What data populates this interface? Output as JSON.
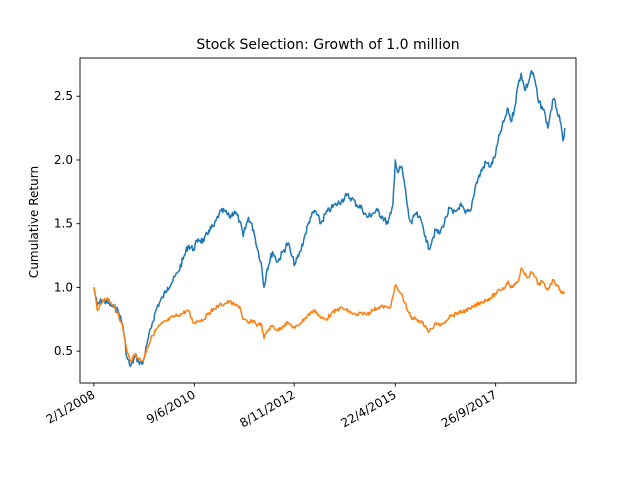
{
  "chart_data": {
    "type": "line",
    "title": "Stock Selection: Growth of 1.0 million",
    "ylabel": "Cumulative Return",
    "xlabel": "",
    "xlim": [
      "2007-09-01",
      "2019-09-07"
    ],
    "ylim": [
      0.25,
      2.8
    ],
    "x_ticks": [
      "2/1/2008",
      "9/6/2010",
      "8/11/2012",
      "22/4/2015",
      "26/9/2017"
    ],
    "x_tick_dates": [
      "2008-01-02",
      "2010-06-09",
      "2012-11-08",
      "2015-04-22",
      "2017-09-26"
    ],
    "y_ticks": [
      0.5,
      1.0,
      1.5,
      2.0,
      2.5
    ],
    "y_tick_labels": [
      "0.5",
      "1.0",
      "1.5",
      "2.0",
      "2.5"
    ],
    "grid": false,
    "series": [
      {
        "color": "#1f77b4",
        "points": [
          [
            "2008-01-02",
            1.0
          ],
          [
            "2008-02-01",
            0.86
          ],
          [
            "2008-03-15",
            0.9
          ],
          [
            "2008-05-01",
            0.88
          ],
          [
            "2008-06-15",
            0.85
          ],
          [
            "2008-08-01",
            0.82
          ],
          [
            "2008-09-15",
            0.7
          ],
          [
            "2008-10-20",
            0.45
          ],
          [
            "2008-11-20",
            0.38
          ],
          [
            "2009-01-05",
            0.46
          ],
          [
            "2009-02-01",
            0.42
          ],
          [
            "2009-03-09",
            0.4
          ],
          [
            "2009-04-15",
            0.55
          ],
          [
            "2009-06-01",
            0.72
          ],
          [
            "2009-07-15",
            0.85
          ],
          [
            "2009-09-01",
            0.92
          ],
          [
            "2009-10-15",
            1.0
          ],
          [
            "2009-12-01",
            1.05
          ],
          [
            "2010-01-15",
            1.12
          ],
          [
            "2010-03-01",
            1.22
          ],
          [
            "2010-04-15",
            1.33
          ],
          [
            "2010-06-01",
            1.3
          ],
          [
            "2010-07-15",
            1.38
          ],
          [
            "2010-09-01",
            1.36
          ],
          [
            "2010-10-15",
            1.45
          ],
          [
            "2010-12-01",
            1.48
          ],
          [
            "2011-01-15",
            1.58
          ],
          [
            "2011-03-01",
            1.6
          ],
          [
            "2011-04-15",
            1.55
          ],
          [
            "2011-06-01",
            1.6
          ],
          [
            "2011-07-15",
            1.52
          ],
          [
            "2011-08-15",
            1.4
          ],
          [
            "2011-10-01",
            1.55
          ],
          [
            "2011-11-15",
            1.45
          ],
          [
            "2011-12-20",
            1.3
          ],
          [
            "2012-01-20",
            1.2
          ],
          [
            "2012-02-15",
            1.0
          ],
          [
            "2012-03-15",
            1.15
          ],
          [
            "2012-05-01",
            1.28
          ],
          [
            "2012-06-15",
            1.2
          ],
          [
            "2012-08-01",
            1.28
          ],
          [
            "2012-09-15",
            1.35
          ],
          [
            "2012-10-15",
            1.25
          ],
          [
            "2012-11-15",
            1.18
          ],
          [
            "2013-01-01",
            1.28
          ],
          [
            "2013-02-15",
            1.42
          ],
          [
            "2013-04-01",
            1.55
          ],
          [
            "2013-05-15",
            1.6
          ],
          [
            "2013-07-01",
            1.5
          ],
          [
            "2013-08-15",
            1.58
          ],
          [
            "2013-10-01",
            1.62
          ],
          [
            "2013-11-15",
            1.65
          ],
          [
            "2014-01-01",
            1.68
          ],
          [
            "2014-02-15",
            1.72
          ],
          [
            "2014-04-01",
            1.7
          ],
          [
            "2014-05-15",
            1.65
          ],
          [
            "2014-07-01",
            1.62
          ],
          [
            "2014-08-15",
            1.55
          ],
          [
            "2014-10-01",
            1.58
          ],
          [
            "2014-11-15",
            1.6
          ],
          [
            "2015-01-01",
            1.55
          ],
          [
            "2015-02-15",
            1.5
          ],
          [
            "2015-03-15",
            1.58
          ],
          [
            "2015-04-01",
            1.65
          ],
          [
            "2015-04-22",
            2.0
          ],
          [
            "2015-05-15",
            1.9
          ],
          [
            "2015-06-15",
            1.95
          ],
          [
            "2015-07-15",
            1.8
          ],
          [
            "2015-08-20",
            1.55
          ],
          [
            "2015-09-15",
            1.5
          ],
          [
            "2015-10-15",
            1.58
          ],
          [
            "2015-11-15",
            1.55
          ],
          [
            "2015-12-15",
            1.5
          ],
          [
            "2016-01-15",
            1.4
          ],
          [
            "2016-02-10",
            1.3
          ],
          [
            "2016-03-15",
            1.38
          ],
          [
            "2016-04-15",
            1.45
          ],
          [
            "2016-05-15",
            1.42
          ],
          [
            "2016-06-15",
            1.48
          ],
          [
            "2016-07-15",
            1.55
          ],
          [
            "2016-08-15",
            1.62
          ],
          [
            "2016-09-15",
            1.58
          ],
          [
            "2016-10-15",
            1.6
          ],
          [
            "2016-11-15",
            1.65
          ],
          [
            "2017-01-01",
            1.58
          ],
          [
            "2017-02-15",
            1.6
          ],
          [
            "2017-04-01",
            1.8
          ],
          [
            "2017-05-15",
            1.9
          ],
          [
            "2017-07-01",
            1.98
          ],
          [
            "2017-08-15",
            1.95
          ],
          [
            "2017-09-26",
            2.05
          ],
          [
            "2017-11-01",
            2.2
          ],
          [
            "2017-12-15",
            2.32
          ],
          [
            "2018-01-15",
            2.4
          ],
          [
            "2018-02-10",
            2.3
          ],
          [
            "2018-03-15",
            2.42
          ],
          [
            "2018-04-15",
            2.6
          ],
          [
            "2018-05-10",
            2.68
          ],
          [
            "2018-06-10",
            2.55
          ],
          [
            "2018-07-10",
            2.6
          ],
          [
            "2018-08-10",
            2.7
          ],
          [
            "2018-09-10",
            2.62
          ],
          [
            "2018-10-10",
            2.45
          ],
          [
            "2018-11-10",
            2.42
          ],
          [
            "2018-12-10",
            2.35
          ],
          [
            "2018-12-31",
            2.25
          ],
          [
            "2019-01-20",
            2.35
          ],
          [
            "2019-02-20",
            2.48
          ],
          [
            "2019-03-20",
            2.4
          ],
          [
            "2019-04-20",
            2.3
          ],
          [
            "2019-05-15",
            2.15
          ],
          [
            "2019-05-31",
            2.25
          ]
        ]
      },
      {
        "color": "#ff7f0e",
        "points": [
          [
            "2008-01-02",
            1.0
          ],
          [
            "2008-02-01",
            0.82
          ],
          [
            "2008-03-15",
            0.88
          ],
          [
            "2008-05-01",
            0.92
          ],
          [
            "2008-06-15",
            0.86
          ],
          [
            "2008-08-01",
            0.8
          ],
          [
            "2008-09-15",
            0.68
          ],
          [
            "2008-10-20",
            0.5
          ],
          [
            "2008-11-20",
            0.42
          ],
          [
            "2009-01-05",
            0.48
          ],
          [
            "2009-02-01",
            0.44
          ],
          [
            "2009-03-09",
            0.42
          ],
          [
            "2009-04-15",
            0.52
          ],
          [
            "2009-06-01",
            0.62
          ],
          [
            "2009-07-15",
            0.68
          ],
          [
            "2009-09-01",
            0.72
          ],
          [
            "2009-10-15",
            0.74
          ],
          [
            "2009-12-01",
            0.77
          ],
          [
            "2010-01-15",
            0.78
          ],
          [
            "2010-03-01",
            0.8
          ],
          [
            "2010-04-15",
            0.82
          ],
          [
            "2010-06-01",
            0.72
          ],
          [
            "2010-07-15",
            0.74
          ],
          [
            "2010-09-01",
            0.75
          ],
          [
            "2010-10-15",
            0.8
          ],
          [
            "2010-12-01",
            0.83
          ],
          [
            "2011-01-15",
            0.86
          ],
          [
            "2011-03-01",
            0.87
          ],
          [
            "2011-04-15",
            0.89
          ],
          [
            "2011-06-01",
            0.86
          ],
          [
            "2011-07-15",
            0.85
          ],
          [
            "2011-08-15",
            0.75
          ],
          [
            "2011-10-01",
            0.72
          ],
          [
            "2011-11-15",
            0.74
          ],
          [
            "2011-12-20",
            0.7
          ],
          [
            "2012-01-20",
            0.72
          ],
          [
            "2012-02-15",
            0.6
          ],
          [
            "2012-03-15",
            0.66
          ],
          [
            "2012-05-01",
            0.7
          ],
          [
            "2012-06-15",
            0.66
          ],
          [
            "2012-08-01",
            0.7
          ],
          [
            "2012-09-15",
            0.72
          ],
          [
            "2012-10-15",
            0.7
          ],
          [
            "2012-11-15",
            0.68
          ],
          [
            "2013-01-01",
            0.72
          ],
          [
            "2013-02-15",
            0.76
          ],
          [
            "2013-04-01",
            0.8
          ],
          [
            "2013-05-15",
            0.82
          ],
          [
            "2013-07-01",
            0.76
          ],
          [
            "2013-08-15",
            0.75
          ],
          [
            "2013-10-01",
            0.79
          ],
          [
            "2013-11-15",
            0.82
          ],
          [
            "2014-01-01",
            0.84
          ],
          [
            "2014-02-15",
            0.82
          ],
          [
            "2014-04-01",
            0.8
          ],
          [
            "2014-05-15",
            0.78
          ],
          [
            "2014-07-01",
            0.8
          ],
          [
            "2014-08-15",
            0.79
          ],
          [
            "2014-10-01",
            0.82
          ],
          [
            "2014-11-15",
            0.84
          ],
          [
            "2015-01-01",
            0.85
          ],
          [
            "2015-02-15",
            0.84
          ],
          [
            "2015-03-15",
            0.86
          ],
          [
            "2015-04-01",
            0.92
          ],
          [
            "2015-04-22",
            1.02
          ],
          [
            "2015-05-15",
            0.98
          ],
          [
            "2015-06-15",
            0.95
          ],
          [
            "2015-07-15",
            0.88
          ],
          [
            "2015-08-20",
            0.8
          ],
          [
            "2015-09-15",
            0.75
          ],
          [
            "2015-10-15",
            0.76
          ],
          [
            "2015-11-15",
            0.74
          ],
          [
            "2015-12-15",
            0.72
          ],
          [
            "2016-01-15",
            0.7
          ],
          [
            "2016-02-10",
            0.65
          ],
          [
            "2016-03-15",
            0.68
          ],
          [
            "2016-04-15",
            0.72
          ],
          [
            "2016-05-15",
            0.7
          ],
          [
            "2016-06-15",
            0.72
          ],
          [
            "2016-07-15",
            0.74
          ],
          [
            "2016-08-15",
            0.78
          ],
          [
            "2016-09-15",
            0.78
          ],
          [
            "2016-10-15",
            0.8
          ],
          [
            "2016-11-15",
            0.8
          ],
          [
            "2017-01-01",
            0.82
          ],
          [
            "2017-02-15",
            0.83
          ],
          [
            "2017-04-01",
            0.86
          ],
          [
            "2017-05-15",
            0.88
          ],
          [
            "2017-07-01",
            0.9
          ],
          [
            "2017-08-15",
            0.92
          ],
          [
            "2017-09-26",
            0.95
          ],
          [
            "2017-11-01",
            0.98
          ],
          [
            "2017-12-15",
            1.0
          ],
          [
            "2018-01-15",
            1.05
          ],
          [
            "2018-02-10",
            1.0
          ],
          [
            "2018-03-15",
            1.02
          ],
          [
            "2018-04-15",
            1.05
          ],
          [
            "2018-05-10",
            1.15
          ],
          [
            "2018-06-10",
            1.1
          ],
          [
            "2018-07-10",
            1.08
          ],
          [
            "2018-08-10",
            1.12
          ],
          [
            "2018-09-10",
            1.08
          ],
          [
            "2018-10-10",
            1.02
          ],
          [
            "2018-11-10",
            1.05
          ],
          [
            "2018-12-10",
            1.0
          ],
          [
            "2018-12-31",
            0.98
          ],
          [
            "2019-01-20",
            1.02
          ],
          [
            "2019-02-20",
            1.06
          ],
          [
            "2019-03-20",
            1.02
          ],
          [
            "2019-04-20",
            0.98
          ],
          [
            "2019-05-15",
            0.95
          ],
          [
            "2019-05-31",
            0.96
          ]
        ]
      }
    ]
  }
}
